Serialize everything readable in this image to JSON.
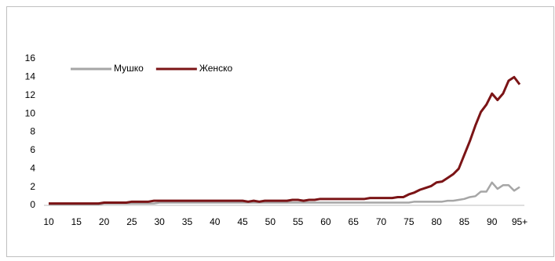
{
  "chart_data": {
    "type": "line",
    "categories": [
      "10",
      null,
      null,
      null,
      null,
      "15",
      null,
      null,
      null,
      null,
      "20",
      null,
      null,
      null,
      null,
      "25",
      null,
      null,
      null,
      null,
      "30",
      null,
      null,
      null,
      null,
      "35",
      null,
      null,
      null,
      null,
      "40",
      null,
      null,
      null,
      null,
      "45",
      null,
      null,
      null,
      null,
      "50",
      null,
      null,
      null,
      null,
      "55",
      null,
      null,
      null,
      null,
      "60",
      null,
      null,
      null,
      null,
      "65",
      null,
      null,
      null,
      null,
      "70",
      null,
      null,
      null,
      null,
      "75",
      null,
      null,
      null,
      null,
      "80",
      null,
      null,
      null,
      null,
      "85",
      null,
      null,
      null,
      null,
      "90",
      null,
      null,
      null,
      null,
      "95+"
    ],
    "series": [
      {
        "name": "Мушко",
        "color": "#a6a6a6",
        "values": [
          0.1,
          0.1,
          0.1,
          0.1,
          0.1,
          0.1,
          0.1,
          0.1,
          0.1,
          0.1,
          0.2,
          0.2,
          0.2,
          0.2,
          0.2,
          0.2,
          0.2,
          0.2,
          0.2,
          0.2,
          0.3,
          0.3,
          0.3,
          0.3,
          0.3,
          0.3,
          0.3,
          0.3,
          0.3,
          0.3,
          0.3,
          0.3,
          0.3,
          0.3,
          0.3,
          0.3,
          0.3,
          0.3,
          0.3,
          0.3,
          0.3,
          0.3,
          0.3,
          0.3,
          0.3,
          0.3,
          0.3,
          0.3,
          0.3,
          0.3,
          0.3,
          0.3,
          0.3,
          0.3,
          0.3,
          0.3,
          0.3,
          0.3,
          0.3,
          0.3,
          0.3,
          0.3,
          0.3,
          0.3,
          0.3,
          0.3,
          0.4,
          0.4,
          0.4,
          0.4,
          0.4,
          0.4,
          0.5,
          0.5,
          0.6,
          0.7,
          0.9,
          1.0,
          1.5,
          1.5,
          2.5,
          1.8,
          2.2,
          2.2,
          1.6,
          2.0
        ]
      },
      {
        "name": "Женско",
        "color": "#7b1416",
        "values": [
          0.2,
          0.2,
          0.2,
          0.2,
          0.2,
          0.2,
          0.2,
          0.2,
          0.2,
          0.2,
          0.3,
          0.3,
          0.3,
          0.3,
          0.3,
          0.4,
          0.4,
          0.4,
          0.4,
          0.5,
          0.5,
          0.5,
          0.5,
          0.5,
          0.5,
          0.5,
          0.5,
          0.5,
          0.5,
          0.5,
          0.5,
          0.5,
          0.5,
          0.5,
          0.5,
          0.5,
          0.4,
          0.5,
          0.4,
          0.5,
          0.5,
          0.5,
          0.5,
          0.5,
          0.6,
          0.6,
          0.5,
          0.6,
          0.6,
          0.7,
          0.7,
          0.7,
          0.7,
          0.7,
          0.7,
          0.7,
          0.7,
          0.7,
          0.8,
          0.8,
          0.8,
          0.8,
          0.8,
          0.9,
          0.9,
          1.2,
          1.4,
          1.7,
          1.9,
          2.1,
          2.5,
          2.6,
          3.0,
          3.4,
          4.0,
          5.5,
          7.0,
          8.7,
          10.2,
          11.0,
          12.2,
          11.5,
          12.2,
          13.6,
          14.0,
          13.2
        ]
      }
    ],
    "ylim": [
      0,
      16
    ],
    "yticks": [
      0,
      2,
      4,
      6,
      8,
      10,
      12,
      14,
      16
    ],
    "legend": "top-left"
  }
}
